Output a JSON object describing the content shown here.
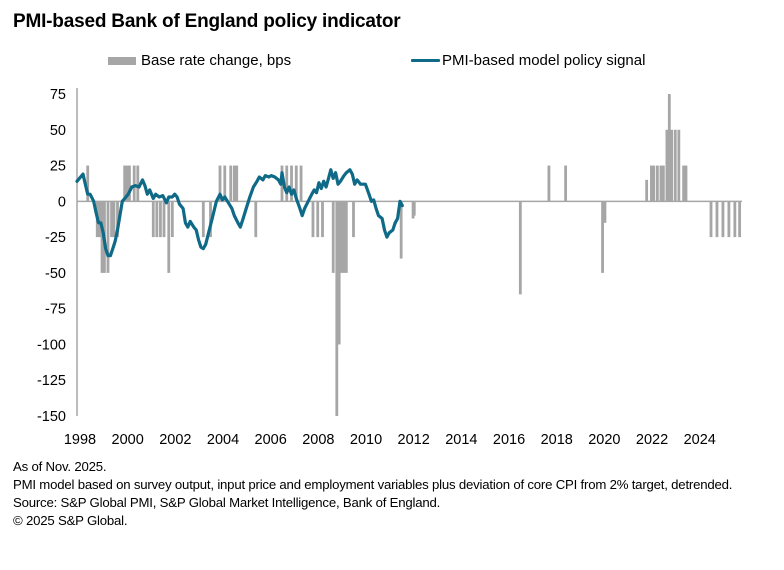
{
  "chart_data": {
    "type": "bar+line",
    "title": "PMI-based Bank of England policy indicator",
    "xlabel": "",
    "ylabel": "",
    "ylim": [
      -150,
      75
    ],
    "y_ticks": [
      75,
      50,
      25,
      0,
      -25,
      -50,
      -75,
      -100,
      -125,
      -150
    ],
    "x_tick_labels": [
      "1998",
      "2000",
      "2002",
      "2004",
      "2006",
      "2008",
      "2010",
      "2012",
      "2014",
      "2016",
      "2018",
      "2020",
      "2022",
      "2024"
    ],
    "xlim": [
      1998.0,
      2025.9
    ],
    "grid": false,
    "legend": {
      "placement": "top",
      "entries": [
        {
          "name": "Base rate change, bps",
          "kind": "bar",
          "color": "#a6a6a6"
        },
        {
          "name": "PMI-based model policy signal",
          "kind": "line",
          "color": "#0e6a87"
        }
      ]
    },
    "series": [
      {
        "name": "Base rate change, bps",
        "kind": "bar",
        "color": "#a6a6a6",
        "points": [
          [
            1998.45,
            25
          ],
          [
            1998.85,
            -25
          ],
          [
            1998.95,
            -25
          ],
          [
            1999.05,
            -50
          ],
          [
            1999.15,
            -50
          ],
          [
            1999.3,
            -50
          ],
          [
            1999.45,
            -25
          ],
          [
            1999.55,
            -25
          ],
          [
            1999.7,
            -25
          ],
          [
            2000.0,
            25
          ],
          [
            2000.1,
            25
          ],
          [
            2000.2,
            25
          ],
          [
            2000.4,
            25
          ],
          [
            2000.55,
            25
          ],
          [
            2001.2,
            -25
          ],
          [
            2001.35,
            -25
          ],
          [
            2001.5,
            -25
          ],
          [
            2001.65,
            -25
          ],
          [
            2001.85,
            -50
          ],
          [
            2002.0,
            -25
          ],
          [
            2003.3,
            -25
          ],
          [
            2003.6,
            -25
          ],
          [
            2004.0,
            25
          ],
          [
            2004.2,
            25
          ],
          [
            2004.45,
            25
          ],
          [
            2004.6,
            25
          ],
          [
            2004.7,
            25
          ],
          [
            2005.5,
            -25
          ],
          [
            2006.6,
            25
          ],
          [
            2006.8,
            25
          ],
          [
            2007.0,
            25
          ],
          [
            2007.2,
            25
          ],
          [
            2007.4,
            25
          ],
          [
            2007.9,
            -25
          ],
          [
            2008.1,
            -25
          ],
          [
            2008.3,
            -25
          ],
          [
            2008.75,
            -50
          ],
          [
            2008.9,
            -150
          ],
          [
            2009.0,
            -100
          ],
          [
            2009.1,
            -50
          ],
          [
            2009.2,
            -50
          ],
          [
            2009.3,
            -50
          ],
          [
            2009.6,
            -25
          ],
          [
            2011.6,
            -40
          ],
          [
            2012.1,
            -12
          ],
          [
            2012.15,
            -10
          ],
          [
            2016.6,
            -65
          ],
          [
            2017.8,
            25
          ],
          [
            2018.5,
            25
          ],
          [
            2020.05,
            -50
          ],
          [
            2020.15,
            -15
          ],
          [
            2021.9,
            15
          ],
          [
            2022.1,
            25
          ],
          [
            2022.2,
            25
          ],
          [
            2022.35,
            25
          ],
          [
            2022.5,
            25
          ],
          [
            2022.6,
            25
          ],
          [
            2022.75,
            50
          ],
          [
            2022.85,
            75
          ],
          [
            2022.95,
            50
          ],
          [
            2023.1,
            50
          ],
          [
            2023.25,
            50
          ],
          [
            2023.45,
            25
          ],
          [
            2023.55,
            25
          ],
          [
            2024.6,
            -25
          ],
          [
            2024.85,
            -25
          ],
          [
            2025.1,
            -25
          ],
          [
            2025.35,
            -25
          ],
          [
            2025.6,
            -25
          ],
          [
            2025.8,
            -25
          ]
        ]
      },
      {
        "name": "PMI-based model policy signal",
        "kind": "line",
        "color": "#0e6a87",
        "points": [
          [
            1998.0,
            14
          ],
          [
            1998.1,
            16
          ],
          [
            1998.25,
            19
          ],
          [
            1998.35,
            12
          ],
          [
            1998.45,
            5
          ],
          [
            1998.55,
            5
          ],
          [
            1998.7,
            0
          ],
          [
            1998.8,
            -8
          ],
          [
            1998.9,
            -15
          ],
          [
            1999.0,
            -15
          ],
          [
            1999.1,
            -22
          ],
          [
            1999.2,
            -33
          ],
          [
            1999.3,
            -38
          ],
          [
            1999.4,
            -38
          ],
          [
            1999.5,
            -33
          ],
          [
            1999.6,
            -28
          ],
          [
            1999.7,
            -20
          ],
          [
            1999.8,
            -10
          ],
          [
            1999.9,
            0
          ],
          [
            2000.0,
            2
          ],
          [
            2000.15,
            5
          ],
          [
            2000.3,
            10
          ],
          [
            2000.45,
            11
          ],
          [
            2000.6,
            10
          ],
          [
            2000.75,
            15
          ],
          [
            2000.85,
            11
          ],
          [
            2000.95,
            5
          ],
          [
            2001.05,
            8
          ],
          [
            2001.2,
            2
          ],
          [
            2001.3,
            5
          ],
          [
            2001.45,
            3
          ],
          [
            2001.6,
            4
          ],
          [
            2001.75,
            -1
          ],
          [
            2001.85,
            3
          ],
          [
            2002.0,
            3
          ],
          [
            2002.1,
            5
          ],
          [
            2002.2,
            3
          ],
          [
            2002.3,
            -2
          ],
          [
            2002.45,
            -5
          ],
          [
            2002.55,
            -15
          ],
          [
            2002.65,
            -18
          ],
          [
            2002.75,
            -14
          ],
          [
            2002.9,
            -18
          ],
          [
            2003.0,
            -20
          ],
          [
            2003.1,
            -27
          ],
          [
            2003.2,
            -32
          ],
          [
            2003.3,
            -33
          ],
          [
            2003.4,
            -30
          ],
          [
            2003.55,
            -20
          ],
          [
            2003.7,
            -10
          ],
          [
            2003.85,
            0
          ],
          [
            2004.0,
            5
          ],
          [
            2004.1,
            1
          ],
          [
            2004.2,
            3
          ],
          [
            2004.35,
            -1
          ],
          [
            2004.5,
            -5
          ],
          [
            2004.6,
            -10
          ],
          [
            2004.75,
            -15
          ],
          [
            2004.85,
            -18
          ],
          [
            2004.95,
            -13
          ],
          [
            2005.1,
            -5
          ],
          [
            2005.25,
            3
          ],
          [
            2005.4,
            10
          ],
          [
            2005.55,
            14
          ],
          [
            2005.65,
            17
          ],
          [
            2005.8,
            15
          ],
          [
            2005.9,
            18
          ],
          [
            2006.05,
            17
          ],
          [
            2006.15,
            18
          ],
          [
            2006.3,
            17
          ],
          [
            2006.45,
            15
          ],
          [
            2006.55,
            12
          ],
          [
            2006.6,
            20
          ],
          [
            2006.7,
            10
          ],
          [
            2006.8,
            6
          ],
          [
            2006.9,
            10
          ],
          [
            2007.0,
            5
          ],
          [
            2007.1,
            8
          ],
          [
            2007.2,
            2
          ],
          [
            2007.35,
            -5
          ],
          [
            2007.45,
            -10
          ],
          [
            2007.55,
            -5
          ],
          [
            2007.7,
            0
          ],
          [
            2007.85,
            5
          ],
          [
            2007.95,
            8
          ],
          [
            2008.05,
            6
          ],
          [
            2008.15,
            13
          ],
          [
            2008.25,
            9
          ],
          [
            2008.35,
            14
          ],
          [
            2008.45,
            10
          ],
          [
            2008.55,
            16
          ],
          [
            2008.65,
            22
          ],
          [
            2008.75,
            16
          ],
          [
            2008.85,
            20
          ],
          [
            2008.95,
            12
          ],
          [
            2009.05,
            14
          ],
          [
            2009.2,
            18
          ],
          [
            2009.3,
            20
          ],
          [
            2009.45,
            22
          ],
          [
            2009.55,
            19
          ],
          [
            2009.65,
            12
          ],
          [
            2009.75,
            15
          ],
          [
            2009.9,
            12
          ],
          [
            2010.0,
            12
          ],
          [
            2010.1,
            12
          ],
          [
            2010.25,
            5
          ],
          [
            2010.35,
            0
          ],
          [
            2010.45,
            1
          ],
          [
            2010.55,
            -5
          ],
          [
            2010.65,
            -10
          ],
          [
            2010.8,
            -12
          ],
          [
            2010.9,
            -20
          ],
          [
            2011.0,
            -25
          ],
          [
            2011.1,
            -22
          ],
          [
            2011.25,
            -20
          ],
          [
            2011.35,
            -15
          ],
          [
            2011.45,
            -12
          ],
          [
            2011.55,
            0
          ],
          [
            2011.65,
            -3
          ]
        ]
      }
    ]
  },
  "footnotes": {
    "as_of": "As of Nov. 2025.",
    "method": "PMI model based on survey output, input price and employment variables plus deviation of core CPI from 2% target, detrended.",
    "source": "Source: S&P Global PMI, S&P Global Market Intelligence, Bank of England.",
    "copyright": "© 2025 S&P Global."
  }
}
